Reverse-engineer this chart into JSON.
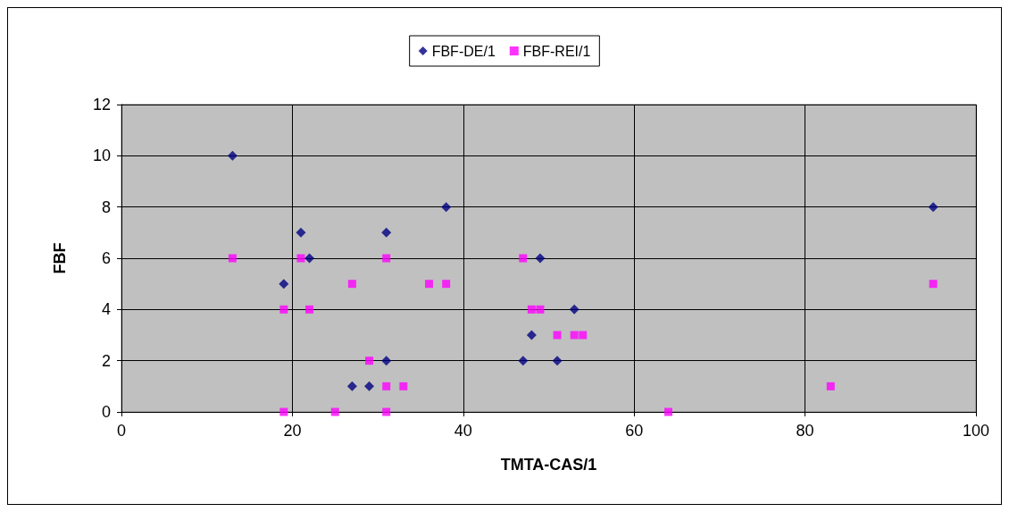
{
  "chart_data": {
    "type": "scatter",
    "xlabel": "TMTA-CAS/1",
    "ylabel": "FBF",
    "xlim": [
      0,
      100
    ],
    "xticks": [
      0,
      20,
      40,
      60,
      80,
      100
    ],
    "ylim": [
      0,
      12
    ],
    "yticks": [
      0,
      2,
      4,
      6,
      8,
      10,
      12
    ],
    "grid": true,
    "legend": "top",
    "series": [
      {
        "name": "FBF-DE/1",
        "color": "#000080",
        "marker": "diamond",
        "x": [
          13,
          19,
          21,
          22,
          27,
          29,
          31,
          31,
          38,
          47,
          48,
          49,
          51,
          53,
          95
        ],
        "values": [
          10,
          5,
          7,
          6,
          1,
          1,
          7,
          2,
          8,
          2,
          3,
          6,
          2,
          4,
          8
        ]
      },
      {
        "name": "FBF-REI/1",
        "color": "#ff00ff",
        "marker": "square",
        "x": [
          13,
          19,
          19,
          21,
          22,
          25,
          27,
          29,
          31,
          31,
          31,
          33,
          36,
          38,
          47,
          48,
          49,
          51,
          53,
          54,
          64,
          83,
          95
        ],
        "values": [
          6,
          4,
          0,
          6,
          4,
          0,
          5,
          2,
          6,
          1,
          0,
          1,
          5,
          5,
          6,
          4,
          4,
          3,
          3,
          3,
          0,
          1,
          5
        ]
      }
    ]
  }
}
